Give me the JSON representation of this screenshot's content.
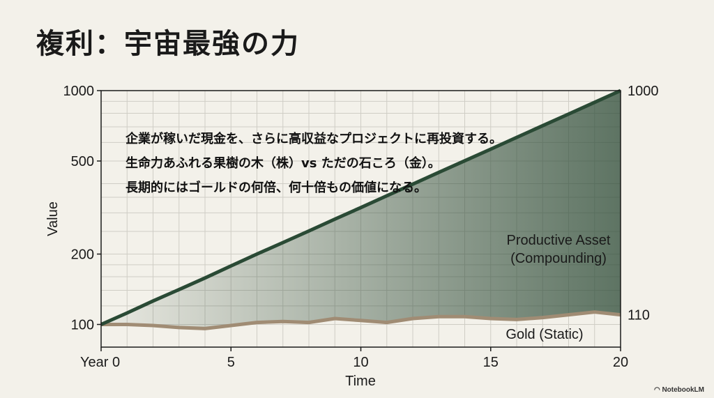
{
  "title": "複利：宇宙最強の力",
  "chart_data": {
    "type": "line",
    "xlabel": "Time",
    "ylabel": "Value",
    "x_tick_labels": [
      "Year 0",
      "5",
      "10",
      "15",
      "20"
    ],
    "x_ticks": [
      0,
      5,
      10,
      15,
      20
    ],
    "y_tick_labels": [
      "100",
      "200",
      "500",
      "1000"
    ],
    "y_ticks": [
      100,
      200,
      500,
      1000
    ],
    "yscale": "log",
    "ylim": [
      80,
      1000
    ],
    "xlim": [
      0,
      20
    ],
    "grid": true,
    "series": [
      {
        "name": "Productive Asset (Compounding)",
        "color": "#2a4a35",
        "x": [
          0,
          1,
          2,
          3,
          4,
          5,
          6,
          7,
          8,
          9,
          10,
          11,
          12,
          13,
          14,
          15,
          16,
          17,
          18,
          19,
          20
        ],
        "values": [
          100,
          112,
          126,
          141,
          158,
          178,
          200,
          224,
          251,
          282,
          316,
          355,
          398,
          447,
          501,
          562,
          631,
          708,
          794,
          891,
          1000
        ],
        "end_label": "1000"
      },
      {
        "name": "Gold (Static)",
        "color": "#a08c74",
        "x": [
          0,
          1,
          2,
          3,
          4,
          5,
          6,
          7,
          8,
          9,
          10,
          11,
          12,
          13,
          14,
          15,
          16,
          17,
          18,
          19,
          20
        ],
        "values": [
          100,
          100,
          99,
          97,
          96,
          99,
          102,
          103,
          102,
          106,
          104,
          102,
          106,
          108,
          108,
          106,
          105,
          107,
          110,
          113,
          110
        ],
        "end_label": "110"
      }
    ],
    "annotations": [
      "企業が稼いだ現金を、さらに高収益なプロジェクトに再投資する。",
      "生命力あふれる果樹の木（株）vs ただの石ころ（金）。",
      "長期的にはゴールドの何倍、何十倍もの価値になる。"
    ]
  },
  "watermark": "NotebookLM"
}
